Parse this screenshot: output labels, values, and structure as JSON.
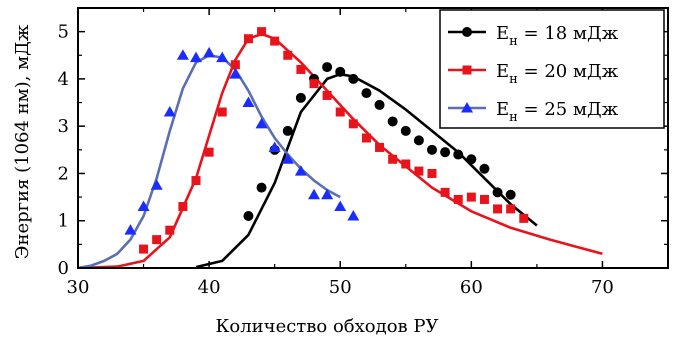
{
  "chart_data": {
    "type": "scatter",
    "xlabel": "Количество обходов РУ",
    "ylabel": "Энергия (1064 нм), мДж",
    "xlim": [
      30,
      75
    ],
    "ylim": [
      0,
      5.5
    ],
    "x_ticks": [
      30,
      40,
      50,
      60,
      70
    ],
    "y_ticks": [
      0,
      1,
      2,
      3,
      4,
      5
    ],
    "grid": false,
    "legend_position": "top-right",
    "series": [
      {
        "name": "Eн = 18 мДж",
        "legend_main": "E",
        "legend_sub": "н",
        "legend_rest": " = 18 мДж",
        "color": "#000000",
        "marker": "circle",
        "points": [
          [
            43,
            1.1
          ],
          [
            44,
            1.7
          ],
          [
            45,
            2.5
          ],
          [
            46,
            2.9
          ],
          [
            47,
            3.6
          ],
          [
            48,
            4.0
          ],
          [
            49,
            4.25
          ],
          [
            50,
            4.15
          ],
          [
            51,
            4.0
          ],
          [
            52,
            3.7
          ],
          [
            53,
            3.45
          ],
          [
            54,
            3.1
          ],
          [
            55,
            2.9
          ],
          [
            56,
            2.7
          ],
          [
            57,
            2.5
          ],
          [
            58,
            2.45
          ],
          [
            59,
            2.4
          ],
          [
            60,
            2.3
          ],
          [
            61,
            2.1
          ],
          [
            62,
            1.6
          ],
          [
            63,
            1.55
          ]
        ],
        "fit": [
          [
            39,
            0.02
          ],
          [
            41,
            0.15
          ],
          [
            43,
            0.7
          ],
          [
            45,
            1.8
          ],
          [
            47,
            3.3
          ],
          [
            49,
            4.0
          ],
          [
            50,
            4.1
          ],
          [
            51,
            4.05
          ],
          [
            53,
            3.75
          ],
          [
            55,
            3.35
          ],
          [
            57,
            2.9
          ],
          [
            59,
            2.45
          ],
          [
            61,
            1.9
          ],
          [
            63,
            1.35
          ],
          [
            65,
            0.9
          ]
        ]
      },
      {
        "name": "Eн = 20 мДж",
        "legend_main": "E",
        "legend_sub": "н",
        "legend_rest": " = 20 мДж",
        "color": "#e8141c",
        "marker": "square",
        "points": [
          [
            35,
            0.4
          ],
          [
            36,
            0.6
          ],
          [
            37,
            0.8
          ],
          [
            38,
            1.3
          ],
          [
            39,
            1.85
          ],
          [
            40,
            2.45
          ],
          [
            41,
            3.3
          ],
          [
            42,
            4.3
          ],
          [
            43,
            4.85
          ],
          [
            44,
            5.0
          ],
          [
            45,
            4.8
          ],
          [
            46,
            4.5
          ],
          [
            47,
            4.2
          ],
          [
            48,
            3.9
          ],
          [
            49,
            3.65
          ],
          [
            50,
            3.3
          ],
          [
            51,
            3.05
          ],
          [
            52,
            2.75
          ],
          [
            53,
            2.55
          ],
          [
            54,
            2.3
          ],
          [
            55,
            2.2
          ],
          [
            56,
            2.05
          ],
          [
            57,
            2.0
          ],
          [
            58,
            1.6
          ],
          [
            59,
            1.45
          ],
          [
            60,
            1.5
          ],
          [
            61,
            1.45
          ],
          [
            62,
            1.25
          ],
          [
            63,
            1.25
          ],
          [
            64,
            1.05
          ]
        ],
        "fit": [
          [
            30,
            0.0
          ],
          [
            33,
            0.03
          ],
          [
            35,
            0.15
          ],
          [
            37,
            0.65
          ],
          [
            39,
            1.9
          ],
          [
            41,
            3.7
          ],
          [
            42,
            4.4
          ],
          [
            43,
            4.85
          ],
          [
            44,
            4.95
          ],
          [
            45,
            4.85
          ],
          [
            47,
            4.35
          ],
          [
            49,
            3.75
          ],
          [
            51,
            3.15
          ],
          [
            53,
            2.6
          ],
          [
            55,
            2.15
          ],
          [
            57,
            1.7
          ],
          [
            60,
            1.2
          ],
          [
            63,
            0.85
          ],
          [
            66,
            0.6
          ],
          [
            68,
            0.45
          ],
          [
            70,
            0.3
          ]
        ]
      },
      {
        "name": "Eн = 25 мДж",
        "legend_main": "E",
        "legend_sub": "н",
        "legend_rest": " = 25 мДж",
        "color": "#1a2cff",
        "line_color": "#5a6eb5",
        "marker": "triangle",
        "points": [
          [
            34,
            0.8
          ],
          [
            35,
            1.3
          ],
          [
            36,
            1.75
          ],
          [
            37,
            3.3
          ],
          [
            38,
            4.5
          ],
          [
            39,
            4.45
          ],
          [
            40,
            4.55
          ],
          [
            41,
            4.45
          ],
          [
            42,
            4.1
          ],
          [
            43,
            3.5
          ],
          [
            44,
            3.05
          ],
          [
            45,
            2.55
          ],
          [
            46,
            2.3
          ],
          [
            47,
            2.05
          ],
          [
            48,
            1.55
          ],
          [
            49,
            1.55
          ],
          [
            50,
            1.3
          ],
          [
            51,
            1.1
          ]
        ],
        "fit": [
          [
            30,
            0.0
          ],
          [
            31,
            0.05
          ],
          [
            32,
            0.15
          ],
          [
            33,
            0.3
          ],
          [
            34,
            0.6
          ],
          [
            35,
            1.1
          ],
          [
            36,
            1.9
          ],
          [
            37,
            2.9
          ],
          [
            38,
            3.8
          ],
          [
            39,
            4.35
          ],
          [
            40,
            4.5
          ],
          [
            41,
            4.45
          ],
          [
            42,
            4.2
          ],
          [
            43,
            3.75
          ],
          [
            44,
            3.2
          ],
          [
            45,
            2.75
          ],
          [
            46,
            2.4
          ],
          [
            47,
            2.1
          ],
          [
            48,
            1.85
          ],
          [
            49,
            1.65
          ],
          [
            50,
            1.5
          ]
        ]
      }
    ]
  }
}
